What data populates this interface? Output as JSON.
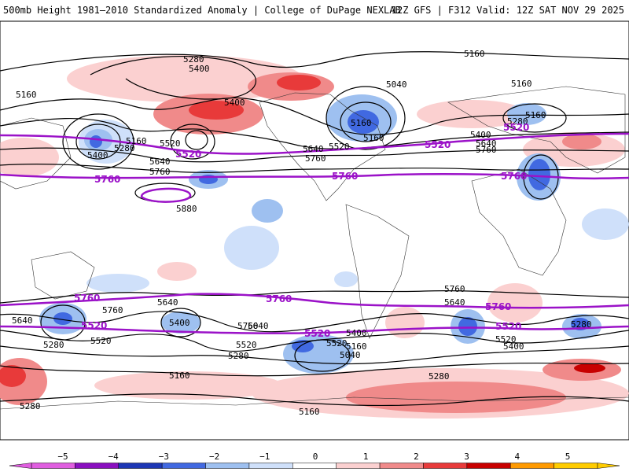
{
  "header": {
    "left_title": "500mb Height 1981–2010 Standardized Anomaly | College of DuPage NEXLAB",
    "right_title": "12Z GFS | F312 Valid: 12Z SAT NOV 29 2025"
  },
  "contour_labels_black": {
    "l01": "5280",
    "l02": "5400",
    "l03": "5160",
    "l04": "5400",
    "l05": "5520",
    "l06": "5160",
    "l07": "5280",
    "l08": "5400",
    "l09": "5640",
    "l10": "5760",
    "l11": "5880",
    "l12": "5160",
    "l13": "5040",
    "l14": "5160",
    "l15": "5640",
    "l16": "5520",
    "l17": "5760",
    "l18": "5160",
    "l19": "5160",
    "l20": "5280",
    "l21": "5400",
    "l22": "5640",
    "l23": "5760",
    "l24": "5640",
    "l25": "5760",
    "l26": "5640",
    "l27": "5520",
    "l28": "5400",
    "l29": "5760",
    "l30": "5520",
    "l31": "5280",
    "l32": "5400",
    "l33": "5160",
    "l34": "5040",
    "l35": "5760",
    "l36": "5640",
    "l37": "5520",
    "l38": "5400",
    "l39": "5280",
    "l40": "5160",
    "l41": "5280",
    "l42": "5280",
    "l43": "5160",
    "l44": "5640",
    "l45": "5520",
    "l46": "5280",
    "l47": "5160"
  },
  "contour_labels_highlight": {
    "p1": "5520",
    "p2": "5520",
    "p3": "5760",
    "p4": "5760",
    "p5": "5760",
    "p6": "5520",
    "p7": "5760",
    "p8": "5760",
    "p9": "5520",
    "p10": "5520",
    "p11": "5520",
    "p12": "5760"
  },
  "colorbar": {
    "ticks": [
      "−5",
      "−4",
      "−3",
      "−2",
      "−1",
      "0",
      "1",
      "2",
      "3",
      "4",
      "5"
    ],
    "colors": [
      "#e05ee0",
      "#8a0fc0",
      "#1d37b5",
      "#4169e1",
      "#9ec0f0",
      "#cfe0fa",
      "#ffffff",
      "#fbd0d0",
      "#f08a8a",
      "#e83a3a",
      "#c80000",
      "#ff9a00",
      "#ffcc00"
    ]
  },
  "colors": {
    "highlight_contour": "#9b12c8",
    "neg1": "#cfe0fa",
    "neg2": "#9ec0f0",
    "neg3": "#4169e1",
    "pos1": "#fbd0d0",
    "pos2": "#f08a8a",
    "pos3": "#e83a3a"
  }
}
